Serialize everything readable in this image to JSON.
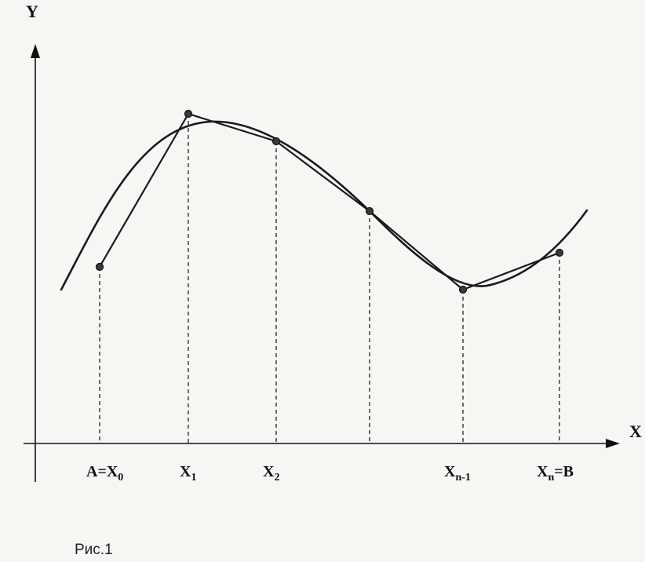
{
  "axes": {
    "x_label": "X",
    "y_label": "Y"
  },
  "points": [
    {
      "main": "A=X",
      "sub": "0",
      "tail": ""
    },
    {
      "main": "X",
      "sub": "1",
      "tail": ""
    },
    {
      "main": "X",
      "sub": "2",
      "tail": ""
    },
    {
      "main": "",
      "sub": "",
      "tail": ""
    },
    {
      "main": "X",
      "sub": "n-1",
      "tail": ""
    },
    {
      "main": "X",
      "sub": "n",
      "tail": "=B"
    }
  ],
  "caption": "Рис.1"
}
